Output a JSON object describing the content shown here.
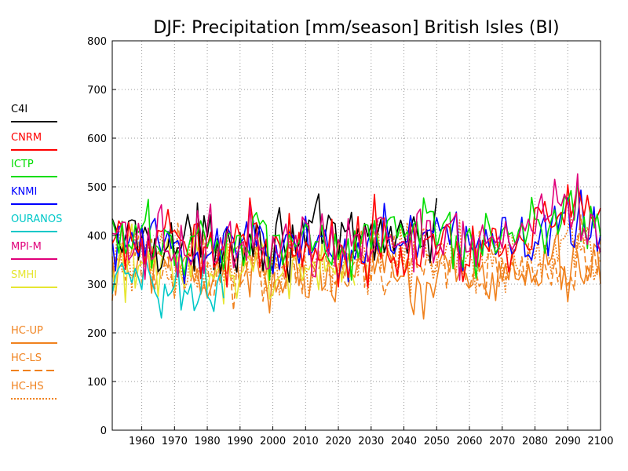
{
  "chart_data": {
    "type": "line",
    "title": "DJF: Precipitation [mm/season] British Isles (BI)",
    "xlabel": "",
    "ylabel": "",
    "xlim": [
      1951,
      2100
    ],
    "ylim": [
      0,
      800
    ],
    "x_ticks": [
      1960,
      1970,
      1980,
      1990,
      2000,
      2010,
      2020,
      2030,
      2040,
      2050,
      2060,
      2070,
      2080,
      2090,
      2100
    ],
    "y_ticks": [
      0,
      100,
      200,
      300,
      400,
      500,
      600,
      700,
      800
    ],
    "grid": true,
    "legend_position": "left",
    "series": [
      {
        "name": "C4I",
        "color": "#000000",
        "dash": "solid",
        "x_range": [
          1951,
          2050
        ],
        "anchor_years": [
          1951,
          1960,
          1970,
          1980,
          1990,
          2000,
          2010,
          2020,
          2030,
          2040,
          2050
        ],
        "anchor_values": [
          390,
          400,
          380,
          385,
          400,
          395,
          400,
          385,
          400,
          410,
          380
        ],
        "low": 300,
        "high": 535
      },
      {
        "name": "CNRM",
        "color": "#ff0000",
        "dash": "solid",
        "x_range": [
          1951,
          2100
        ],
        "anchor_years": [
          1951,
          1960,
          1970,
          1980,
          1990,
          2000,
          2010,
          2020,
          2030,
          2040,
          2050,
          2060,
          2070,
          2080,
          2090,
          2100
        ],
        "anchor_values": [
          370,
          385,
          375,
          370,
          395,
          380,
          385,
          360,
          390,
          390,
          400,
          360,
          395,
          420,
          450,
          420
        ],
        "low": 195,
        "high": 545
      },
      {
        "name": "ICTP",
        "color": "#00dd00",
        "dash": "solid",
        "x_range": [
          1951,
          2100
        ],
        "anchor_years": [
          1951,
          1960,
          1970,
          1980,
          1990,
          2000,
          2010,
          2020,
          2030,
          2040,
          2050,
          2060,
          2070,
          2080,
          2090,
          2100
        ],
        "anchor_values": [
          380,
          395,
          385,
          380,
          405,
          390,
          395,
          380,
          400,
          400,
          410,
          380,
          405,
          430,
          460,
          420
        ],
        "low": 250,
        "high": 530
      },
      {
        "name": "KNMI",
        "color": "#0000ff",
        "dash": "solid",
        "x_range": [
          1951,
          2100
        ],
        "anchor_years": [
          1951,
          1960,
          1970,
          1980,
          1990,
          2000,
          2010,
          2020,
          2030,
          2040,
          2050,
          2060,
          2070,
          2080,
          2090,
          2100
        ],
        "anchor_values": [
          370,
          385,
          375,
          370,
          395,
          380,
          385,
          370,
          390,
          390,
          400,
          360,
          395,
          415,
          445,
          410
        ],
        "low": 185,
        "high": 510
      },
      {
        "name": "OURANOS",
        "color": "#00c8c8",
        "dash": "solid",
        "x_range": [
          1951,
          1985
        ],
        "anchor_years": [
          1951,
          1960,
          1970,
          1980,
          1985
        ],
        "anchor_values": [
          290,
          310,
          300,
          295,
          305
        ],
        "low": 190,
        "high": 380
      },
      {
        "name": "MPI-M",
        "color": "#e0007a",
        "dash": "solid",
        "x_range": [
          1951,
          2100
        ],
        "anchor_years": [
          1951,
          1960,
          1970,
          1980,
          1990,
          2000,
          2010,
          2020,
          2030,
          2040,
          2050,
          2060,
          2070,
          2080,
          2090,
          2100
        ],
        "anchor_values": [
          375,
          390,
          380,
          375,
          400,
          385,
          390,
          375,
          395,
          395,
          405,
          370,
          400,
          425,
          455,
          420
        ],
        "low": 190,
        "high": 545
      },
      {
        "name": "SMHI",
        "color": "#e6e632",
        "dash": "solid",
        "x_range": [
          1951,
          2025
        ],
        "anchor_years": [
          1951,
          1960,
          1970,
          1980,
          1990,
          2000,
          2010,
          2025
        ],
        "anchor_values": [
          330,
          340,
          320,
          325,
          345,
          335,
          340,
          330
        ],
        "low": 210,
        "high": 470
      },
      {
        "name": "HC-UP",
        "color": "#f0821e",
        "dash": "solid",
        "x_range": [
          1951,
          2100
        ],
        "anchor_years": [
          1951,
          1960,
          1970,
          1980,
          1990,
          2000,
          2010,
          2020,
          2030,
          2040,
          2050,
          2060,
          2070,
          2080,
          2090,
          2100
        ],
        "anchor_values": [
          320,
          330,
          320,
          315,
          325,
          320,
          325,
          320,
          330,
          325,
          330,
          320,
          330,
          335,
          345,
          330
        ],
        "low": 190,
        "high": 460
      },
      {
        "name": "HC-LS",
        "color": "#f0821e",
        "dash": "dashed",
        "x_range": [
          1951,
          2100
        ],
        "anchor_years": [
          1951,
          1960,
          1970,
          1980,
          1990,
          2000,
          2010,
          2020,
          2030,
          2040,
          2050,
          2060,
          2070,
          2080,
          2090,
          2100
        ],
        "anchor_values": [
          330,
          340,
          330,
          325,
          335,
          330,
          335,
          330,
          340,
          335,
          345,
          330,
          340,
          345,
          355,
          340
        ],
        "low": 200,
        "high": 470
      },
      {
        "name": "HC-HS",
        "color": "#f0821e",
        "dash": "dotted",
        "x_range": [
          1951,
          2100
        ],
        "anchor_years": [
          1951,
          1960,
          1970,
          1980,
          1990,
          2000,
          2010,
          2020,
          2030,
          2040,
          2050,
          2060,
          2070,
          2080,
          2090,
          2100
        ],
        "anchor_values": [
          340,
          350,
          340,
          335,
          345,
          340,
          345,
          340,
          350,
          350,
          365,
          345,
          355,
          360,
          375,
          355
        ],
        "low": 200,
        "high": 545
      }
    ]
  }
}
